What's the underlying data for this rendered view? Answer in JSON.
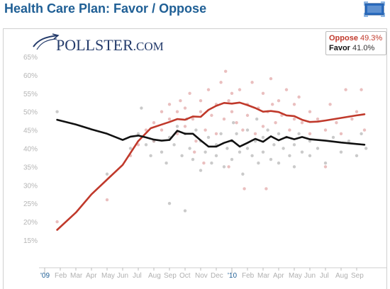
{
  "header": {
    "title": "Health Care Plan: Favor / Oppose"
  },
  "branding": {
    "logo_main": "POLLSTER",
    "logo_suffix": ".COM"
  },
  "legend": {
    "items": [
      {
        "label": "Oppose",
        "value": "49.3%",
        "color": "#c0392b"
      },
      {
        "label": "Favor",
        "value": "41.0%",
        "color": "#111111"
      }
    ]
  },
  "chart_data": {
    "type": "line",
    "title": "Health Care Plan: Favor / Oppose",
    "xlabel": "",
    "ylabel": "",
    "ylim": [
      10,
      67
    ],
    "grid": false,
    "legend_position": "top-right",
    "y_ticks": [
      15,
      20,
      25,
      30,
      35,
      40,
      45,
      50,
      55,
      60,
      65
    ],
    "y_tick_labels": [
      "15%",
      "20%",
      "25%",
      "30%",
      "35%",
      "40%",
      "45%",
      "50%",
      "55%",
      "60%",
      "65%"
    ],
    "x_ticks": [
      {
        "x": 0,
        "label": "'09",
        "major": true
      },
      {
        "x": 1,
        "label": "Feb"
      },
      {
        "x": 2,
        "label": "Mar"
      },
      {
        "x": 3,
        "label": "Apr"
      },
      {
        "x": 4,
        "label": "May"
      },
      {
        "x": 5,
        "label": "Jun"
      },
      {
        "x": 6,
        "label": "Jul"
      },
      {
        "x": 7,
        "label": "Aug"
      },
      {
        "x": 8,
        "label": "Sep"
      },
      {
        "x": 9,
        "label": "Oct"
      },
      {
        "x": 10,
        "label": "Nov"
      },
      {
        "x": 11,
        "label": "Dec"
      },
      {
        "x": 12,
        "label": "'10",
        "major": true
      },
      {
        "x": 13,
        "label": "Feb"
      },
      {
        "x": 14,
        "label": "Mar"
      },
      {
        "x": 15,
        "label": "Apr"
      },
      {
        "x": 16,
        "label": "May"
      },
      {
        "x": 17,
        "label": "Jun"
      },
      {
        "x": 18,
        "label": "Jul"
      },
      {
        "x": 19,
        "label": "Aug"
      },
      {
        "x": 20,
        "label": "Sep"
      }
    ],
    "series": [
      {
        "name": "Oppose",
        "color": "#c0392b",
        "final_value": "49.3%",
        "points": [
          [
            0.8,
            17.8
          ],
          [
            2,
            22.5
          ],
          [
            3,
            27.5
          ],
          [
            4,
            31.5
          ],
          [
            5,
            35.5
          ],
          [
            6,
            42
          ],
          [
            6.8,
            45.5
          ],
          [
            7.5,
            46.5
          ],
          [
            8,
            47.2
          ],
          [
            8.5,
            48.0
          ],
          [
            9,
            47.8
          ],
          [
            9.5,
            48.7
          ],
          [
            10,
            48.6
          ],
          [
            10.5,
            50.5
          ],
          [
            11,
            51.6
          ],
          [
            11.5,
            52.4
          ],
          [
            12,
            52.2
          ],
          [
            12.5,
            52.5
          ],
          [
            13,
            51.8
          ],
          [
            13.5,
            51.0
          ],
          [
            14,
            50.0
          ],
          [
            14.5,
            50.2
          ],
          [
            15,
            49.9
          ],
          [
            15.5,
            49.0
          ],
          [
            16,
            48.8
          ],
          [
            16.5,
            47.8
          ],
          [
            17,
            47.2
          ],
          [
            17.5,
            47.3
          ],
          [
            18,
            47.6
          ],
          [
            19,
            48.3
          ],
          [
            20,
            49.0
          ],
          [
            20.5,
            49.3
          ]
        ]
      },
      {
        "name": "Favor",
        "color": "#111111",
        "final_value": "41.0%",
        "points": [
          [
            0.8,
            47.8
          ],
          [
            2,
            46.5
          ],
          [
            3,
            45.2
          ],
          [
            4,
            44.0
          ],
          [
            5,
            42.3
          ],
          [
            5.5,
            43.2
          ],
          [
            6,
            43.5
          ],
          [
            6.5,
            43.0
          ],
          [
            7,
            42.4
          ],
          [
            7.5,
            42.1
          ],
          [
            8,
            42.3
          ],
          [
            8.5,
            44.8
          ],
          [
            9,
            44.0
          ],
          [
            9.5,
            44.0
          ],
          [
            10,
            42.2
          ],
          [
            10.5,
            40.5
          ],
          [
            11,
            40.5
          ],
          [
            11.5,
            41.5
          ],
          [
            12,
            42.2
          ],
          [
            12.5,
            40.5
          ],
          [
            13,
            41.5
          ],
          [
            13.5,
            42.6
          ],
          [
            14,
            41.8
          ],
          [
            14.5,
            43.3
          ],
          [
            15,
            42.2
          ],
          [
            15.5,
            43.1
          ],
          [
            16,
            42.5
          ],
          [
            16.5,
            43.1
          ],
          [
            17,
            42.5
          ],
          [
            18,
            42.1
          ],
          [
            19,
            41.6
          ],
          [
            20,
            41.2
          ],
          [
            20.5,
            41.0
          ]
        ]
      }
    ],
    "scatter": [
      {
        "name": "Oppose polls",
        "color": "#d98b8b",
        "points": [
          [
            0.8,
            20
          ],
          [
            4,
            26
          ],
          [
            5.5,
            38
          ],
          [
            6,
            41
          ],
          [
            6.5,
            45
          ],
          [
            7,
            42
          ],
          [
            7,
            47
          ],
          [
            7.5,
            50
          ],
          [
            7.5,
            45
          ],
          [
            8,
            48
          ],
          [
            8,
            52
          ],
          [
            8.5,
            44
          ],
          [
            8.5,
            50
          ],
          [
            8.7,
            53
          ],
          [
            9,
            46
          ],
          [
            9,
            51
          ],
          [
            9.3,
            55
          ],
          [
            9.5,
            48
          ],
          [
            9.7,
            42
          ],
          [
            10,
            50
          ],
          [
            10,
            53
          ],
          [
            10.3,
            45
          ],
          [
            10.5,
            56
          ],
          [
            10.7,
            49
          ],
          [
            11,
            52
          ],
          [
            11,
            44
          ],
          [
            11.3,
            58
          ],
          [
            11.5,
            48
          ],
          [
            11.6,
            61
          ],
          [
            11.8,
            53
          ],
          [
            12,
            50
          ],
          [
            12,
            55
          ],
          [
            12.3,
            47
          ],
          [
            12.5,
            56
          ],
          [
            12.7,
            45
          ],
          [
            13,
            52
          ],
          [
            13,
            49
          ],
          [
            13.3,
            58
          ],
          [
            13.5,
            44
          ],
          [
            13.7,
            51
          ],
          [
            14,
            55
          ],
          [
            14,
            46
          ],
          [
            14.3,
            50
          ],
          [
            14.5,
            59
          ],
          [
            14.6,
            52
          ],
          [
            14.8,
            47
          ],
          [
            15,
            53
          ],
          [
            15.2,
            49
          ],
          [
            15.5,
            56
          ],
          [
            15.7,
            45
          ],
          [
            16,
            52
          ],
          [
            16,
            48
          ],
          [
            16.3,
            54
          ],
          [
            16.5,
            47
          ],
          [
            17,
            50
          ],
          [
            17,
            44
          ],
          [
            17.5,
            48
          ],
          [
            18,
            35
          ],
          [
            18,
            45
          ],
          [
            18.3,
            52
          ],
          [
            18.7,
            47
          ],
          [
            19,
            44
          ],
          [
            19.3,
            56
          ],
          [
            19.7,
            48
          ],
          [
            20,
            50
          ],
          [
            20.3,
            56
          ],
          [
            20.5,
            45
          ],
          [
            10.2,
            36
          ],
          [
            11.8,
            35
          ],
          [
            12.8,
            29
          ],
          [
            9.6,
            39
          ],
          [
            14.2,
            29
          ]
        ]
      },
      {
        "name": "Favor polls",
        "color": "#9e9e9e",
        "points": [
          [
            0.8,
            50
          ],
          [
            4,
            33
          ],
          [
            5.5,
            40
          ],
          [
            6,
            44
          ],
          [
            6.5,
            41
          ],
          [
            6.8,
            38
          ],
          [
            7,
            42
          ],
          [
            7.5,
            39
          ],
          [
            7.8,
            36
          ],
          [
            8,
            43
          ],
          [
            8,
            25
          ],
          [
            8.3,
            41
          ],
          [
            8.5,
            46
          ],
          [
            8.8,
            38
          ],
          [
            9,
            44
          ],
          [
            9,
            23
          ],
          [
            9.3,
            40
          ],
          [
            9.5,
            37
          ],
          [
            9.7,
            45
          ],
          [
            10,
            42
          ],
          [
            10,
            34
          ],
          [
            10.3,
            39
          ],
          [
            10.5,
            43
          ],
          [
            10.7,
            36
          ],
          [
            11,
            41
          ],
          [
            11,
            38
          ],
          [
            11.3,
            44
          ],
          [
            11.5,
            35
          ],
          [
            11.7,
            40
          ],
          [
            12,
            42
          ],
          [
            12,
            37
          ],
          [
            12.3,
            44
          ],
          [
            12.5,
            39
          ],
          [
            12.7,
            33
          ],
          [
            13,
            40
          ],
          [
            13,
            45
          ],
          [
            13.3,
            38
          ],
          [
            13.5,
            42
          ],
          [
            13.7,
            36
          ],
          [
            14,
            43
          ],
          [
            14,
            39
          ],
          [
            14.3,
            45
          ],
          [
            14.5,
            37
          ],
          [
            14.7,
            41
          ],
          [
            15,
            44
          ],
          [
            15,
            36
          ],
          [
            15.3,
            40
          ],
          [
            15.5,
            43
          ],
          [
            15.7,
            38
          ],
          [
            16,
            41
          ],
          [
            16,
            35
          ],
          [
            16.3,
            44
          ],
          [
            16.5,
            39
          ],
          [
            17,
            42
          ],
          [
            17,
            38
          ],
          [
            17.5,
            40
          ],
          [
            18,
            36
          ],
          [
            18.5,
            43
          ],
          [
            19,
            39
          ],
          [
            19.5,
            42
          ],
          [
            20,
            38
          ],
          [
            20.3,
            44
          ],
          [
            20.6,
            40
          ],
          [
            6.2,
            51
          ],
          [
            9.1,
            48
          ],
          [
            13.6,
            48
          ],
          [
            12.1,
            47
          ]
        ]
      }
    ]
  }
}
